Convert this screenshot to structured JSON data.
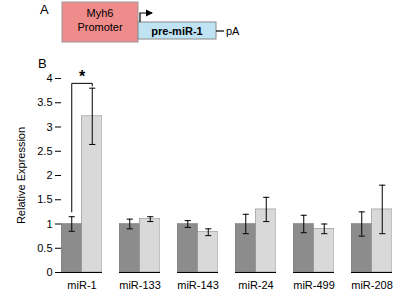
{
  "diagram": {
    "label": "A",
    "promoter": "Myh6 Promoter",
    "insert": "pre-miR-1",
    "tail": "pA"
  },
  "chart_data": {
    "type": "bar",
    "panel_label": "B",
    "categories": [
      "miR-1",
      "miR-133",
      "miR-143",
      "miR-24",
      "miR-499",
      "miR-208"
    ],
    "series": [
      {
        "color": "#8c8c8c",
        "values": [
          1.0,
          1.0,
          1.0,
          1.0,
          1.0,
          1.0
        ],
        "errors": [
          0.15,
          0.1,
          0.07,
          0.2,
          0.18,
          0.25
        ]
      },
      {
        "color": "#d9d9d9",
        "values": [
          3.22,
          1.1,
          0.83,
          1.3,
          0.9,
          1.3
        ],
        "errors": [
          0.58,
          0.05,
          0.07,
          0.25,
          0.1,
          0.5
        ]
      }
    ],
    "y_label": "Relative Expression",
    "ylim": [
      0,
      4
    ],
    "yticks": [
      0,
      0.5,
      1,
      1.5,
      2,
      2.5,
      3,
      3.5,
      4
    ],
    "annotations": [
      {
        "text": "*",
        "category": "miR-1"
      }
    ]
  }
}
